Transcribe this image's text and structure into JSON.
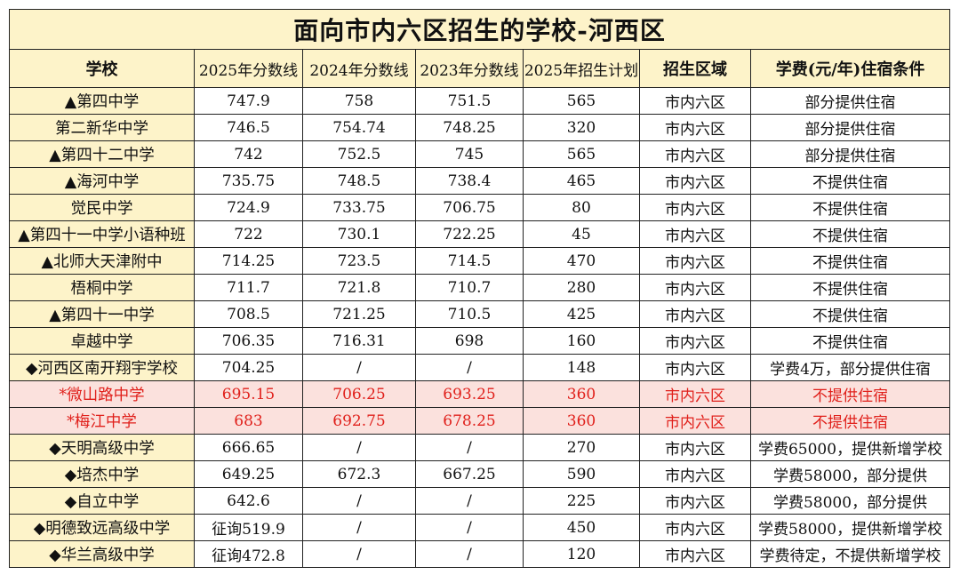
{
  "title": "面向市内六区招生的学校-河西区",
  "headers": [
    "学校",
    "2025年分数线",
    "2024年分数线",
    "2023年分数线",
    "2025年招生计划",
    "招生区域",
    "学费(元/年)住宿条件"
  ],
  "rows": [
    {
      "school": "▲第四中学",
      "s2025": "747.9",
      "s2024": "758",
      "s2023": "751.5",
      "plan": "565",
      "area": "市内六区",
      "cond": "部分提供住宿",
      "hl": false
    },
    {
      "school": "第二新华中学",
      "s2025": "746.5",
      "s2024": "754.74",
      "s2023": "748.25",
      "plan": "320",
      "area": "市内六区",
      "cond": "部分提供住宿",
      "hl": false
    },
    {
      "school": "▲第四十二中学",
      "s2025": "742",
      "s2024": "752.5",
      "s2023": "745",
      "plan": "565",
      "area": "市内六区",
      "cond": "部分提供住宿",
      "hl": false
    },
    {
      "school": "▲海河中学",
      "s2025": "735.75",
      "s2024": "748.5",
      "s2023": "738.4",
      "plan": "465",
      "area": "市内六区",
      "cond": "不提供住宿",
      "hl": false
    },
    {
      "school": "觉民中学",
      "s2025": "724.9",
      "s2024": "733.75",
      "s2023": "706.75",
      "plan": "80",
      "area": "市内六区",
      "cond": "不提供住宿",
      "hl": false
    },
    {
      "school": "▲第四十一中学小语种班",
      "s2025": "722",
      "s2024": "730.1",
      "s2023": "722.25",
      "plan": "45",
      "area": "市内六区",
      "cond": "不提供住宿",
      "hl": false
    },
    {
      "school": "▲北师大天津附中",
      "s2025": "714.25",
      "s2024": "723.5",
      "s2023": "714.5",
      "plan": "470",
      "area": "市内六区",
      "cond": "不提供住宿",
      "hl": false
    },
    {
      "school": "梧桐中学",
      "s2025": "711.7",
      "s2024": "721.8",
      "s2023": "710.7",
      "plan": "280",
      "area": "市内六区",
      "cond": "不提供住宿",
      "hl": false
    },
    {
      "school": "▲第四十一中学",
      "s2025": "708.5",
      "s2024": "721.25",
      "s2023": "710.5",
      "plan": "425",
      "area": "市内六区",
      "cond": "不提供住宿",
      "hl": false
    },
    {
      "school": "卓越中学",
      "s2025": "706.35",
      "s2024": "716.31",
      "s2023": "698",
      "plan": "160",
      "area": "市内六区",
      "cond": "不提供住宿",
      "hl": false
    },
    {
      "school": "◆河西区南开翔宇学校",
      "s2025": "704.25",
      "s2024": "/",
      "s2023": "/",
      "plan": "148",
      "area": "市内六区",
      "cond": "学费4万，部分提供住宿",
      "hl": false
    },
    {
      "school": "*微山路中学",
      "s2025": "695.15",
      "s2024": "706.25",
      "s2023": "693.25",
      "plan": "360",
      "area": "市内六区",
      "cond": "不提供住宿",
      "hl": true
    },
    {
      "school": "*梅江中学",
      "s2025": "683",
      "s2024": "692.75",
      "s2023": "678.25",
      "plan": "360",
      "area": "市内六区",
      "cond": "不提供住宿",
      "hl": true
    },
    {
      "school": "◆天明高级中学",
      "s2025": "666.65",
      "s2024": "/",
      "s2023": "/",
      "plan": "270",
      "area": "市内六区",
      "cond": "学费65000，提供新增学校",
      "hl": false
    },
    {
      "school": "◆培杰中学",
      "s2025": "649.25",
      "s2024": "672.3",
      "s2023": "667.25",
      "plan": "590",
      "area": "市内六区",
      "cond": "学费58000，部分提供",
      "hl": false
    },
    {
      "school": "◆自立中学",
      "s2025": "642.6",
      "s2024": "/",
      "s2023": "/",
      "plan": "225",
      "area": "市内六区",
      "cond": "学费58000，部分提供",
      "hl": false
    },
    {
      "school": "◆明德致远高级中学",
      "s2025": "征询519.9",
      "s2024": "/",
      "s2023": "/",
      "plan": "450",
      "area": "市内六区",
      "cond": "学费58000，提供新增学校",
      "hl": false
    },
    {
      "school": "◆华兰高级中学",
      "s2025": "征询472.8",
      "s2024": "/",
      "s2023": "/",
      "plan": "120",
      "area": "市内六区",
      "cond": "学费待定，不提供新增学校",
      "hl": false
    }
  ],
  "colors": {
    "header_bg": "#fdf3c9",
    "highlight_bg": "#fbe1dd",
    "highlight_text": "#e0201b"
  }
}
